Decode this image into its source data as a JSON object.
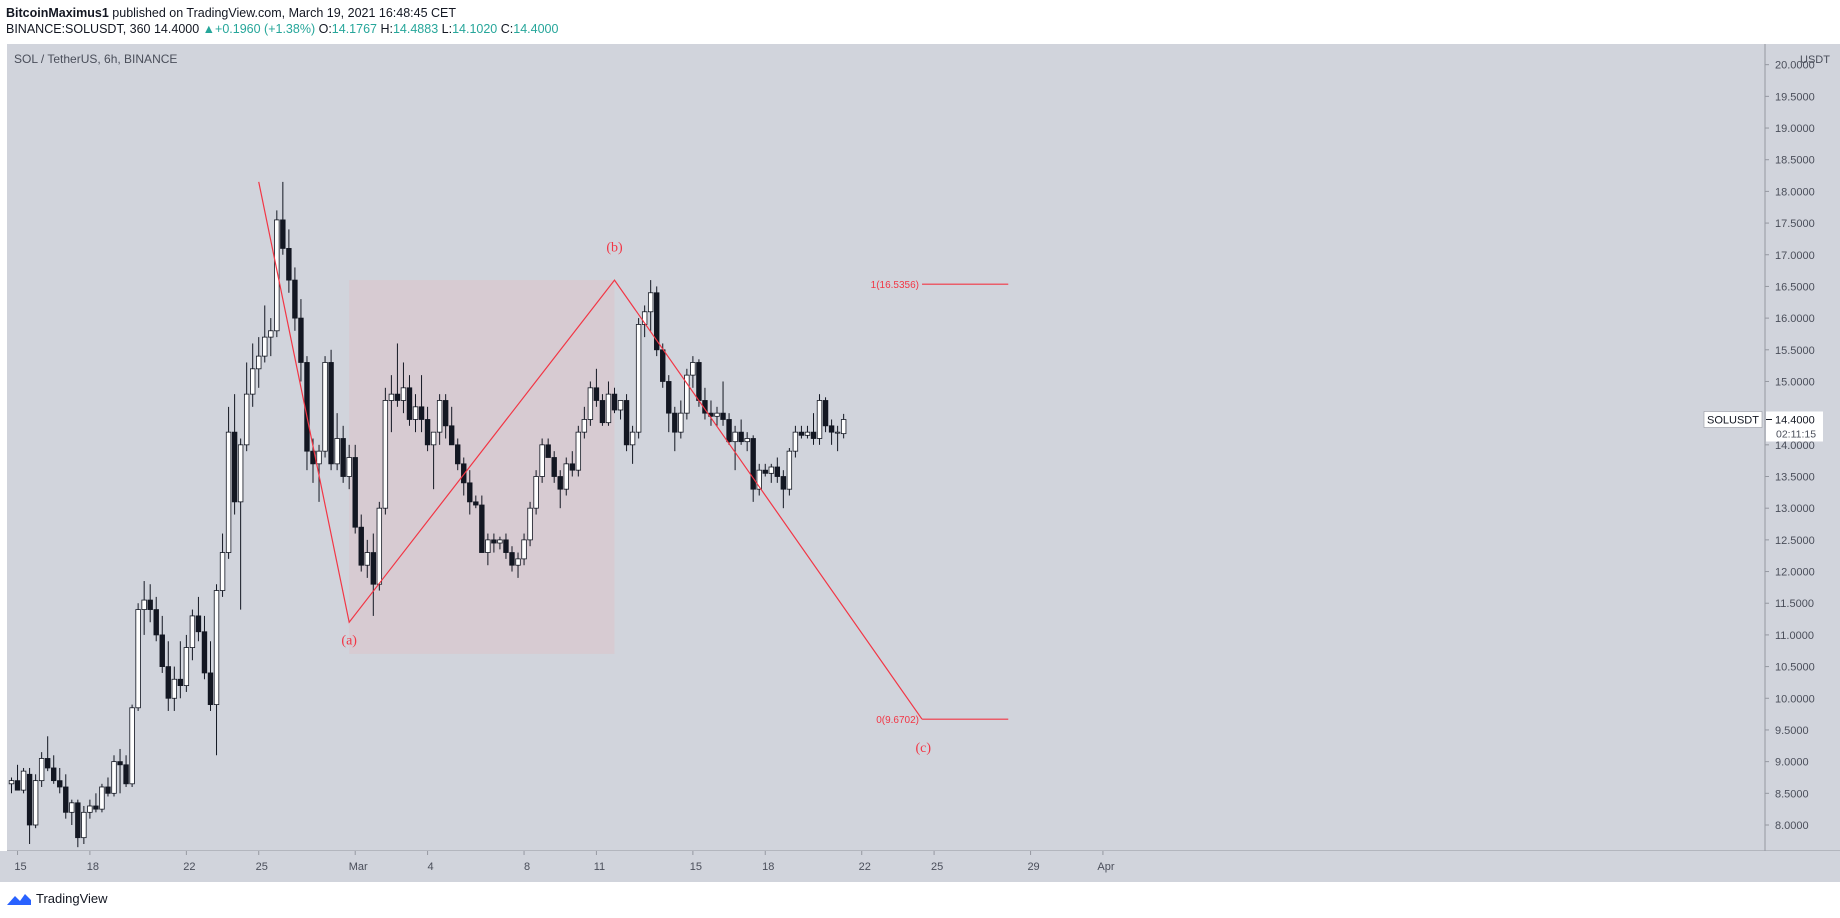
{
  "header": {
    "author": "BitcoinMaximus1",
    "published_text": "published on TradingView.com, March 19, 2021 16:48:45 CET",
    "symbol": "BINANCE:SOLUSDT, 360",
    "last": "14.4000",
    "change": "+0.1960 (+1.38%)",
    "o_label": "O:",
    "o": "14.1767",
    "h_label": "H:",
    "h": "14.4883",
    "l_label": "L:",
    "l": "14.1020",
    "c_label": "C:",
    "c": "14.4000"
  },
  "footer": {
    "brand": "TradingView"
  },
  "chart_data": {
    "type": "candlestick",
    "title": "SOL / TetherUS, 6h, BINANCE",
    "currency": "USDT",
    "ylim": [
      7.7,
      20.2
    ],
    "y_ticks": [
      "8.0000",
      "8.5000",
      "9.0000",
      "9.5000",
      "10.0000",
      "10.5000",
      "11.0000",
      "11.5000",
      "12.0000",
      "12.5000",
      "13.0000",
      "13.5000",
      "14.0000",
      "14.5000",
      "15.0000",
      "15.5000",
      "16.0000",
      "16.5000",
      "17.0000",
      "17.5000",
      "18.0000",
      "18.5000",
      "19.0000",
      "19.5000",
      "20.0000"
    ],
    "x_ticks": [
      {
        "label": "15",
        "idx": 1
      },
      {
        "label": "18",
        "idx": 13
      },
      {
        "label": "22",
        "idx": 29
      },
      {
        "label": "25",
        "idx": 41
      },
      {
        "label": "Mar",
        "idx": 57
      },
      {
        "label": "4",
        "idx": 69
      },
      {
        "label": "8",
        "idx": 85
      },
      {
        "label": "11",
        "idx": 97
      },
      {
        "label": "15",
        "idx": 113
      },
      {
        "label": "18",
        "idx": 125
      },
      {
        "label": "22",
        "idx": 141
      },
      {
        "label": "25",
        "idx": 153
      },
      {
        "label": "29",
        "idx": 169
      },
      {
        "label": "Apr",
        "idx": 181
      }
    ],
    "candles": [
      {
        "o": 8.65,
        "h": 8.75,
        "l": 8.5,
        "c": 8.7
      },
      {
        "o": 8.7,
        "h": 8.95,
        "l": 8.55,
        "c": 8.55
      },
      {
        "o": 8.55,
        "h": 8.9,
        "l": 8.5,
        "c": 8.85
      },
      {
        "o": 8.8,
        "h": 8.9,
        "l": 7.7,
        "c": 8.0
      },
      {
        "o": 8.0,
        "h": 8.8,
        "l": 7.95,
        "c": 8.7
      },
      {
        "o": 8.7,
        "h": 9.15,
        "l": 8.6,
        "c": 9.05
      },
      {
        "o": 9.05,
        "h": 9.4,
        "l": 8.85,
        "c": 8.9
      },
      {
        "o": 8.9,
        "h": 9.1,
        "l": 8.65,
        "c": 8.7
      },
      {
        "o": 8.7,
        "h": 8.9,
        "l": 8.5,
        "c": 8.6
      },
      {
        "o": 8.6,
        "h": 8.8,
        "l": 8.1,
        "c": 8.2
      },
      {
        "o": 8.2,
        "h": 8.4,
        "l": 8.0,
        "c": 8.35
      },
      {
        "o": 8.35,
        "h": 8.4,
        "l": 7.65,
        "c": 7.8
      },
      {
        "o": 7.8,
        "h": 8.3,
        "l": 7.7,
        "c": 8.2
      },
      {
        "o": 8.2,
        "h": 8.4,
        "l": 8.1,
        "c": 8.3
      },
      {
        "o": 8.3,
        "h": 8.5,
        "l": 8.2,
        "c": 8.25
      },
      {
        "o": 8.25,
        "h": 8.65,
        "l": 8.2,
        "c": 8.6
      },
      {
        "o": 8.6,
        "h": 8.75,
        "l": 8.45,
        "c": 8.5
      },
      {
        "o": 8.5,
        "h": 9.1,
        "l": 8.45,
        "c": 9.0
      },
      {
        "o": 9.0,
        "h": 9.2,
        "l": 8.5,
        "c": 8.95
      },
      {
        "o": 8.95,
        "h": 9.1,
        "l": 8.6,
        "c": 8.65
      },
      {
        "o": 8.65,
        "h": 9.9,
        "l": 8.6,
        "c": 9.85
      },
      {
        "o": 9.85,
        "h": 11.5,
        "l": 9.8,
        "c": 11.4
      },
      {
        "o": 11.4,
        "h": 11.85,
        "l": 11.0,
        "c": 11.55
      },
      {
        "o": 11.55,
        "h": 11.8,
        "l": 11.2,
        "c": 11.4
      },
      {
        "o": 11.4,
        "h": 11.6,
        "l": 10.9,
        "c": 11.0
      },
      {
        "o": 11.0,
        "h": 11.3,
        "l": 10.4,
        "c": 10.5
      },
      {
        "o": 10.5,
        "h": 10.9,
        "l": 9.8,
        "c": 10.0
      },
      {
        "o": 10.0,
        "h": 10.5,
        "l": 9.8,
        "c": 10.3
      },
      {
        "o": 10.3,
        "h": 10.9,
        "l": 10.0,
        "c": 10.2
      },
      {
        "o": 10.2,
        "h": 11.0,
        "l": 10.1,
        "c": 10.8
      },
      {
        "o": 10.8,
        "h": 11.4,
        "l": 10.6,
        "c": 11.3
      },
      {
        "o": 11.3,
        "h": 11.6,
        "l": 10.9,
        "c": 11.05
      },
      {
        "o": 11.05,
        "h": 11.3,
        "l": 10.3,
        "c": 10.4
      },
      {
        "o": 10.4,
        "h": 10.9,
        "l": 9.8,
        "c": 9.9
      },
      {
        "o": 9.9,
        "h": 11.8,
        "l": 9.1,
        "c": 11.7
      },
      {
        "o": 11.7,
        "h": 12.6,
        "l": 11.6,
        "c": 12.3
      },
      {
        "o": 12.3,
        "h": 14.6,
        "l": 12.2,
        "c": 14.2
      },
      {
        "o": 14.2,
        "h": 14.8,
        "l": 12.9,
        "c": 13.1
      },
      {
        "o": 13.1,
        "h": 14.1,
        "l": 11.4,
        "c": 14.0
      },
      {
        "o": 14.0,
        "h": 15.3,
        "l": 13.9,
        "c": 14.8
      },
      {
        "o": 14.8,
        "h": 15.6,
        "l": 14.6,
        "c": 15.2
      },
      {
        "o": 15.2,
        "h": 15.7,
        "l": 14.9,
        "c": 15.4
      },
      {
        "o": 15.4,
        "h": 16.2,
        "l": 15.3,
        "c": 15.7
      },
      {
        "o": 15.7,
        "h": 16.0,
        "l": 15.4,
        "c": 15.8
      },
      {
        "o": 15.8,
        "h": 17.7,
        "l": 15.7,
        "c": 17.55
      },
      {
        "o": 17.55,
        "h": 18.15,
        "l": 17.0,
        "c": 17.1
      },
      {
        "o": 17.1,
        "h": 17.4,
        "l": 16.4,
        "c": 16.6
      },
      {
        "o": 16.6,
        "h": 16.8,
        "l": 15.8,
        "c": 16.0
      },
      {
        "o": 16.0,
        "h": 16.3,
        "l": 15.0,
        "c": 15.3
      },
      {
        "o": 15.3,
        "h": 15.4,
        "l": 13.6,
        "c": 13.9
      },
      {
        "o": 13.9,
        "h": 14.1,
        "l": 13.4,
        "c": 13.7
      },
      {
        "o": 13.7,
        "h": 14.0,
        "l": 13.1,
        "c": 13.9
      },
      {
        "o": 13.9,
        "h": 15.4,
        "l": 13.8,
        "c": 15.3
      },
      {
        "o": 15.3,
        "h": 15.5,
        "l": 13.6,
        "c": 13.7
      },
      {
        "o": 13.7,
        "h": 14.5,
        "l": 13.6,
        "c": 14.1
      },
      {
        "o": 14.1,
        "h": 14.3,
        "l": 13.4,
        "c": 13.5
      },
      {
        "o": 13.5,
        "h": 14.0,
        "l": 13.3,
        "c": 13.8
      },
      {
        "o": 13.8,
        "h": 14.0,
        "l": 12.6,
        "c": 12.7
      },
      {
        "o": 12.7,
        "h": 12.9,
        "l": 12.0,
        "c": 12.1
      },
      {
        "o": 12.1,
        "h": 12.5,
        "l": 11.9,
        "c": 12.3
      },
      {
        "o": 12.3,
        "h": 12.6,
        "l": 11.3,
        "c": 11.8
      },
      {
        "o": 11.8,
        "h": 13.1,
        "l": 11.7,
        "c": 13.0
      },
      {
        "o": 13.0,
        "h": 14.9,
        "l": 12.9,
        "c": 14.7
      },
      {
        "o": 14.7,
        "h": 15.1,
        "l": 14.2,
        "c": 14.8
      },
      {
        "o": 14.8,
        "h": 15.6,
        "l": 14.6,
        "c": 14.7
      },
      {
        "o": 14.7,
        "h": 15.3,
        "l": 14.5,
        "c": 14.9
      },
      {
        "o": 14.9,
        "h": 15.1,
        "l": 14.3,
        "c": 14.4
      },
      {
        "o": 14.4,
        "h": 14.8,
        "l": 14.2,
        "c": 14.6
      },
      {
        "o": 14.6,
        "h": 15.1,
        "l": 14.2,
        "c": 14.4
      },
      {
        "o": 14.4,
        "h": 14.6,
        "l": 13.9,
        "c": 14.0
      },
      {
        "o": 14.0,
        "h": 14.2,
        "l": 13.3,
        "c": 14.2
      },
      {
        "o": 14.2,
        "h": 14.8,
        "l": 14.0,
        "c": 14.7
      },
      {
        "o": 14.7,
        "h": 14.8,
        "l": 14.1,
        "c": 14.3
      },
      {
        "o": 14.3,
        "h": 14.6,
        "l": 14.0,
        "c": 14.0
      },
      {
        "o": 14.0,
        "h": 14.1,
        "l": 13.6,
        "c": 13.7
      },
      {
        "o": 13.7,
        "h": 13.8,
        "l": 13.2,
        "c": 13.4
      },
      {
        "o": 13.4,
        "h": 13.6,
        "l": 12.9,
        "c": 13.1
      },
      {
        "o": 13.1,
        "h": 13.2,
        "l": 13.0,
        "c": 13.05
      },
      {
        "o": 13.05,
        "h": 13.2,
        "l": 12.3,
        "c": 12.3
      },
      {
        "o": 12.3,
        "h": 12.6,
        "l": 12.1,
        "c": 12.5
      },
      {
        "o": 12.5,
        "h": 12.6,
        "l": 12.3,
        "c": 12.45
      },
      {
        "o": 12.45,
        "h": 12.55,
        "l": 12.35,
        "c": 12.5
      },
      {
        "o": 12.5,
        "h": 12.6,
        "l": 12.2,
        "c": 12.3
      },
      {
        "o": 12.3,
        "h": 12.4,
        "l": 12.0,
        "c": 12.1
      },
      {
        "o": 12.1,
        "h": 12.3,
        "l": 11.9,
        "c": 12.2
      },
      {
        "o": 12.2,
        "h": 12.6,
        "l": 12.1,
        "c": 12.5
      },
      {
        "o": 12.5,
        "h": 13.1,
        "l": 12.4,
        "c": 13.0
      },
      {
        "o": 13.0,
        "h": 13.6,
        "l": 12.9,
        "c": 13.5
      },
      {
        "o": 13.5,
        "h": 14.1,
        "l": 13.4,
        "c": 14.0
      },
      {
        "o": 14.0,
        "h": 14.1,
        "l": 13.8,
        "c": 13.8
      },
      {
        "o": 13.8,
        "h": 13.9,
        "l": 13.4,
        "c": 13.5
      },
      {
        "o": 13.5,
        "h": 13.6,
        "l": 13.0,
        "c": 13.3
      },
      {
        "o": 13.3,
        "h": 13.8,
        "l": 13.2,
        "c": 13.7
      },
      {
        "o": 13.7,
        "h": 13.9,
        "l": 13.5,
        "c": 13.6
      },
      {
        "o": 13.6,
        "h": 14.3,
        "l": 13.5,
        "c": 14.2
      },
      {
        "o": 14.2,
        "h": 14.6,
        "l": 14.1,
        "c": 14.4
      },
      {
        "o": 14.4,
        "h": 15.0,
        "l": 14.3,
        "c": 14.9
      },
      {
        "o": 14.9,
        "h": 15.2,
        "l": 14.6,
        "c": 14.7
      },
      {
        "o": 14.7,
        "h": 14.8,
        "l": 14.3,
        "c": 14.35
      },
      {
        "o": 14.35,
        "h": 15.0,
        "l": 14.3,
        "c": 14.8
      },
      {
        "o": 14.8,
        "h": 14.9,
        "l": 14.5,
        "c": 14.55
      },
      {
        "o": 14.55,
        "h": 14.7,
        "l": 14.4,
        "c": 14.7
      },
      {
        "o": 14.7,
        "h": 14.8,
        "l": 13.9,
        "c": 14.0
      },
      {
        "o": 14.0,
        "h": 14.3,
        "l": 13.7,
        "c": 14.2
      },
      {
        "o": 14.2,
        "h": 16.0,
        "l": 14.1,
        "c": 15.9
      },
      {
        "o": 15.9,
        "h": 16.2,
        "l": 15.7,
        "c": 16.1
      },
      {
        "o": 16.1,
        "h": 16.6,
        "l": 15.8,
        "c": 16.4
      },
      {
        "o": 16.4,
        "h": 16.5,
        "l": 15.4,
        "c": 15.5
      },
      {
        "o": 15.5,
        "h": 15.6,
        "l": 14.9,
        "c": 15.0
      },
      {
        "o": 15.0,
        "h": 15.1,
        "l": 14.2,
        "c": 14.5
      },
      {
        "o": 14.5,
        "h": 14.6,
        "l": 13.9,
        "c": 14.2
      },
      {
        "o": 14.2,
        "h": 14.7,
        "l": 14.1,
        "c": 14.5
      },
      {
        "o": 14.5,
        "h": 15.2,
        "l": 14.4,
        "c": 15.1
      },
      {
        "o": 15.1,
        "h": 15.4,
        "l": 14.9,
        "c": 15.3
      },
      {
        "o": 15.3,
        "h": 15.35,
        "l": 14.6,
        "c": 14.7
      },
      {
        "o": 14.7,
        "h": 14.9,
        "l": 14.4,
        "c": 14.5
      },
      {
        "o": 14.5,
        "h": 14.7,
        "l": 14.3,
        "c": 14.45
      },
      {
        "o": 14.45,
        "h": 14.6,
        "l": 14.3,
        "c": 14.5
      },
      {
        "o": 14.5,
        "h": 15.0,
        "l": 14.3,
        "c": 14.4
      },
      {
        "o": 14.4,
        "h": 14.5,
        "l": 14.0,
        "c": 14.05
      },
      {
        "o": 14.05,
        "h": 14.3,
        "l": 13.6,
        "c": 14.2
      },
      {
        "o": 14.2,
        "h": 14.4,
        "l": 14.0,
        "c": 14.05
      },
      {
        "o": 14.05,
        "h": 14.2,
        "l": 13.9,
        "c": 14.1
      },
      {
        "o": 14.1,
        "h": 14.15,
        "l": 13.1,
        "c": 13.3
      },
      {
        "o": 13.3,
        "h": 13.7,
        "l": 13.2,
        "c": 13.6
      },
      {
        "o": 13.6,
        "h": 13.7,
        "l": 13.5,
        "c": 13.55
      },
      {
        "o": 13.55,
        "h": 13.7,
        "l": 13.4,
        "c": 13.65
      },
      {
        "o": 13.65,
        "h": 13.8,
        "l": 13.4,
        "c": 13.5
      },
      {
        "o": 13.5,
        "h": 13.6,
        "l": 13.0,
        "c": 13.3
      },
      {
        "o": 13.3,
        "h": 13.95,
        "l": 13.2,
        "c": 13.9
      },
      {
        "o": 13.9,
        "h": 14.3,
        "l": 13.8,
        "c": 14.2
      },
      {
        "o": 14.2,
        "h": 14.3,
        "l": 14.1,
        "c": 14.15
      },
      {
        "o": 14.15,
        "h": 14.3,
        "l": 14.1,
        "c": 14.2
      },
      {
        "o": 14.2,
        "h": 14.5,
        "l": 14.0,
        "c": 14.1
      },
      {
        "o": 14.1,
        "h": 14.8,
        "l": 14.0,
        "c": 14.7
      },
      {
        "o": 14.7,
        "h": 14.75,
        "l": 14.2,
        "c": 14.3
      },
      {
        "o": 14.3,
        "h": 14.4,
        "l": 14.0,
        "c": 14.2
      },
      {
        "o": 14.2,
        "h": 14.3,
        "l": 13.9,
        "c": 14.2
      },
      {
        "o": 14.1767,
        "h": 14.4883,
        "l": 14.102,
        "c": 14.4
      }
    ],
    "zone": {
      "x0": 56,
      "x1": 100,
      "y_top": 16.6,
      "y_bot": 10.7
    },
    "wave_path": [
      {
        "idx": 41,
        "y": 18.15
      },
      {
        "idx": 56,
        "y": 11.2
      },
      {
        "idx": 100,
        "y": 16.6
      },
      {
        "idx": 151,
        "y": 9.67
      }
    ],
    "annotations": [
      {
        "label": "(a)",
        "idx": 56,
        "y": 10.85
      },
      {
        "label": "(b)",
        "idx": 100,
        "y": 17.05
      },
      {
        "label": "(c)",
        "idx": 151.2,
        "y": 9.15
      }
    ],
    "fib_levels": [
      {
        "label": "1(16.5356)",
        "value": 16.5356,
        "x0": 151,
        "x1": 159
      },
      {
        "label": "0(9.6702)",
        "value": 9.6702,
        "x0": 151,
        "x1": 159
      }
    ],
    "last_price": {
      "symbol": "SOLUSDT",
      "value": "14.4000",
      "countdown": "02:11:15",
      "y": 14.4
    }
  }
}
